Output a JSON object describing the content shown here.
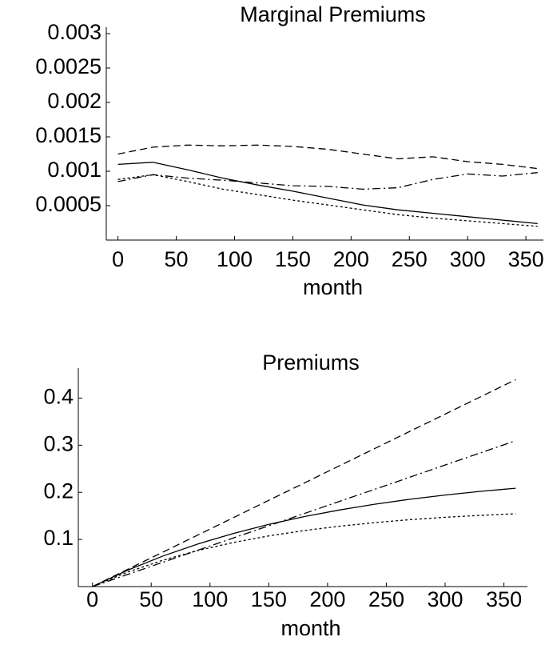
{
  "chart_data": [
    {
      "type": "line",
      "title": "Marginal Premiums",
      "x_label": "month",
      "x": [
        0,
        30,
        60,
        90,
        120,
        150,
        180,
        210,
        240,
        270,
        300,
        330,
        360
      ],
      "xlim": [
        -10,
        365
      ],
      "xticks": [
        0,
        50,
        100,
        150,
        200,
        250,
        300,
        350
      ],
      "ylim": [
        0,
        0.003
      ],
      "yticks": [
        0.0005,
        0.001,
        0.0015,
        0.002,
        0.0025,
        0.003
      ],
      "grid": false,
      "series": [
        {
          "color": "#000000",
          "dash": "solid",
          "values": [
            0.0011,
            0.00113,
            0.00102,
            0.0009,
            0.0008,
            0.00071,
            0.00061,
            0.00051,
            0.00044,
            0.00039,
            0.00034,
            0.00029,
            0.00024
          ]
        },
        {
          "color": "#000000",
          "dash": "dotted",
          "values": [
            0.00088,
            0.00095,
            0.00085,
            0.00074,
            0.00066,
            0.00058,
            0.00051,
            0.00044,
            0.00037,
            0.00032,
            0.00028,
            0.00024,
            0.0002
          ]
        },
        {
          "color": "#000000",
          "dash": "dashed",
          "values": [
            0.00125,
            0.00135,
            0.00138,
            0.00137,
            0.00138,
            0.00136,
            0.00132,
            0.00125,
            0.00118,
            0.00121,
            0.00114,
            0.0011,
            0.00104
          ]
        },
        {
          "color": "#000000",
          "dash": "dotdash",
          "values": [
            0.00085,
            0.00095,
            0.0009,
            0.00087,
            0.00083,
            0.00079,
            0.00078,
            0.00074,
            0.00076,
            0.00088,
            0.00096,
            0.00093,
            0.00098
          ]
        }
      ]
    },
    {
      "type": "line",
      "title": "Premiums",
      "x_label": "month",
      "x": [
        0,
        30,
        60,
        90,
        120,
        150,
        180,
        210,
        240,
        270,
        300,
        330,
        360
      ],
      "xlim": [
        -12,
        370
      ],
      "xticks": [
        0,
        50,
        100,
        150,
        200,
        250,
        300,
        350
      ],
      "ylim": [
        0,
        0.45
      ],
      "yticks": [
        0.1,
        0.2,
        0.3,
        0.4
      ],
      "grid": false,
      "series": [
        {
          "color": "#000000",
          "dash": "solid",
          "values": [
            0,
            0.0348,
            0.0648,
            0.0906,
            0.1128,
            0.1319,
            0.1484,
            0.1625,
            0.1747,
            0.1852,
            0.1942,
            0.202,
            0.2087
          ]
        },
        {
          "color": "#000000",
          "dash": "dotted",
          "values": [
            0,
            0.0308,
            0.056,
            0.0767,
            0.0936,
            0.1075,
            0.1188,
            0.1281,
            0.1357,
            0.1419,
            0.147,
            0.1512,
            0.1546
          ]
        },
        {
          "color": "#000000",
          "dash": "dashed",
          "values": [
            0,
            0.0366,
            0.0732,
            0.1098,
            0.1464,
            0.183,
            0.2196,
            0.2562,
            0.2928,
            0.3294,
            0.366,
            0.4026,
            0.4392
          ]
        },
        {
          "color": "#000000",
          "dash": "dotdash",
          "values": [
            0,
            0.0258,
            0.0516,
            0.0774,
            0.1032,
            0.129,
            0.1548,
            0.1806,
            0.2064,
            0.2322,
            0.258,
            0.2838,
            0.3096
          ]
        }
      ]
    }
  ]
}
